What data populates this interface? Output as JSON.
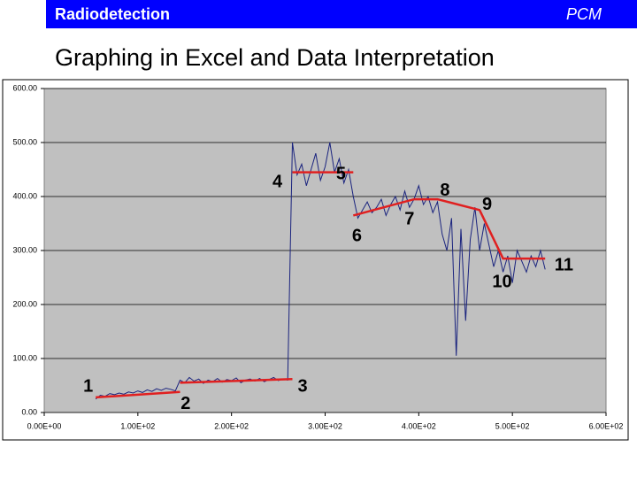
{
  "header": {
    "left": "Radiodetection",
    "right": "PCM"
  },
  "title": "Graphing in Excel and Data Interpretation",
  "chart_data": {
    "type": "line",
    "xlim": [
      0,
      600
    ],
    "xticks": [
      {
        "value": 0,
        "label": "0.00E+00"
      },
      {
        "value": 100,
        "label": "1.00E+02"
      },
      {
        "value": 200,
        "label": "2.00E+02"
      },
      {
        "value": 300,
        "label": "3.00E+02"
      },
      {
        "value": 400,
        "label": "4.00E+02"
      },
      {
        "value": 500,
        "label": "5.00E+02"
      },
      {
        "value": 600,
        "label": "6.00E+02"
      }
    ],
    "ylim": [
      0,
      600
    ],
    "yticks": [
      {
        "value": 0,
        "label": "0.00"
      },
      {
        "value": 100,
        "label": "100.00"
      },
      {
        "value": 200,
        "label": "200.00"
      },
      {
        "value": 300,
        "label": "300.00"
      },
      {
        "value": 400,
        "label": "400.00"
      },
      {
        "value": 500,
        "label": "500.00"
      },
      {
        "value": 600,
        "label": "600.00"
      }
    ],
    "grid": true,
    "series": [
      {
        "color": "#1a237e",
        "x": [
          55,
          60,
          65,
          70,
          75,
          80,
          85,
          90,
          95,
          100,
          105,
          110,
          115,
          120,
          125,
          130,
          135,
          140,
          145,
          150,
          155,
          160,
          165,
          170,
          175,
          180,
          185,
          190,
          195,
          200,
          205,
          210,
          215,
          220,
          225,
          230,
          235,
          240,
          245,
          250,
          255,
          260,
          265,
          270,
          275,
          280,
          285,
          290,
          295,
          300,
          305,
          310,
          315,
          320,
          325,
          330,
          335,
          340,
          345,
          350,
          355,
          360,
          365,
          370,
          375,
          380,
          385,
          390,
          395,
          400,
          405,
          410,
          415,
          420,
          425,
          430,
          435,
          440,
          445,
          450,
          455,
          460,
          465,
          470,
          475,
          480,
          485,
          490,
          495,
          500,
          505,
          510,
          515,
          520,
          525,
          530,
          535
        ],
        "values": [
          25,
          32,
          30,
          35,
          33,
          36,
          34,
          38,
          36,
          40,
          37,
          42,
          39,
          44,
          41,
          45,
          43,
          40,
          60,
          55,
          65,
          58,
          62,
          54,
          60,
          57,
          63,
          56,
          61,
          59,
          64,
          55,
          60,
          62,
          58,
          63,
          57,
          61,
          65,
          59,
          62,
          60,
          500,
          440,
          460,
          420,
          450,
          480,
          430,
          455,
          500,
          445,
          470,
          425,
          450,
          400,
          360,
          375,
          390,
          370,
          380,
          395,
          365,
          385,
          400,
          375,
          410,
          380,
          395,
          420,
          385,
          400,
          370,
          390,
          330,
          300,
          360,
          105,
          340,
          170,
          320,
          380,
          300,
          350,
          310,
          270,
          300,
          260,
          290,
          240,
          300,
          280,
          260,
          290,
          270,
          300,
          265
        ]
      },
      {
        "color": "#e02020",
        "x": [
          55,
          145,
          null,
          145,
          265,
          null,
          265,
          330,
          null,
          330,
          395,
          420,
          465,
          490,
          535
        ],
        "values": [
          28,
          38,
          null,
          55,
          62,
          null,
          445,
          445,
          null,
          365,
          395,
          395,
          375,
          285,
          285
        ]
      }
    ],
    "annotations": [
      {
        "text": "1",
        "x": 47,
        "y": 47
      },
      {
        "text": "2",
        "x": 151,
        "y": 15
      },
      {
        "text": "3",
        "x": 276,
        "y": 47
      },
      {
        "text": "4",
        "x": 249,
        "y": 426
      },
      {
        "text": "5",
        "x": 317,
        "y": 441
      },
      {
        "text": "6",
        "x": 334,
        "y": 326
      },
      {
        "text": "7",
        "x": 390,
        "y": 357
      },
      {
        "text": "8",
        "x": 428,
        "y": 410
      },
      {
        "text": "9",
        "x": 473,
        "y": 384
      },
      {
        "text": "10",
        "x": 489,
        "y": 241
      },
      {
        "text": "11",
        "x": 555,
        "y": 272
      }
    ]
  }
}
